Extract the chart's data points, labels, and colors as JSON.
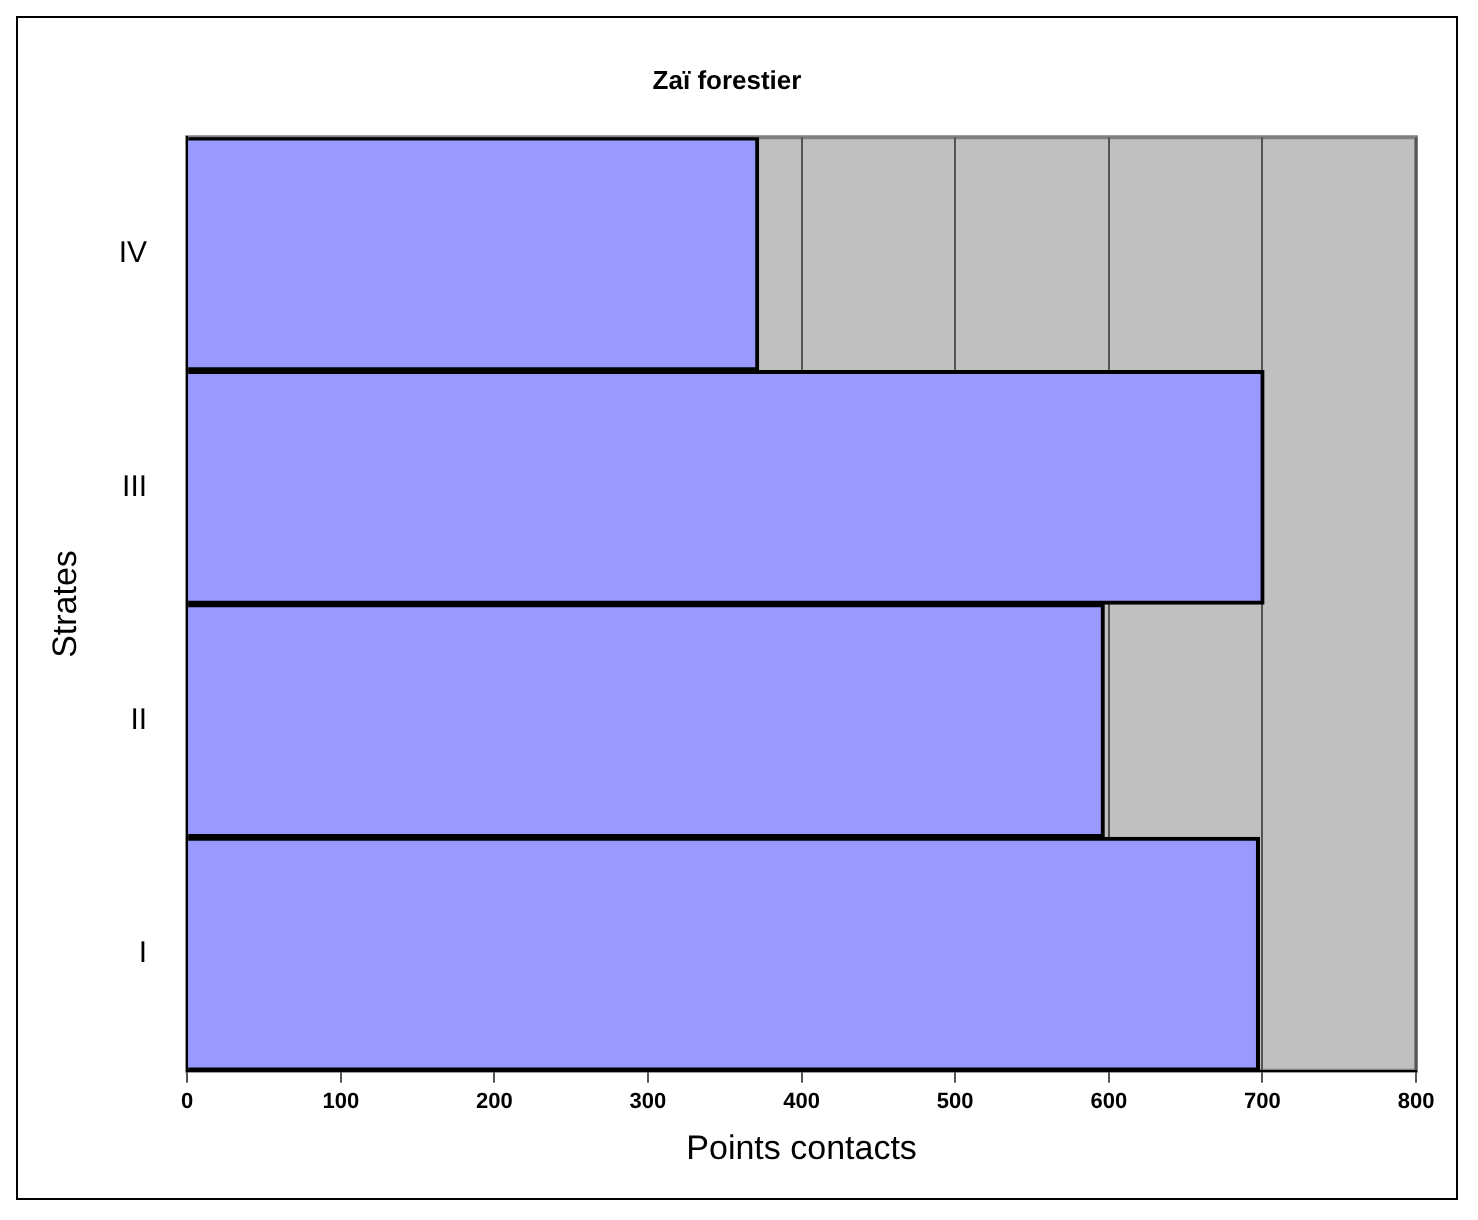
{
  "chart_data": {
    "type": "bar",
    "orientation": "horizontal",
    "title": "Zaï forestier",
    "xlabel": "Points contacts",
    "ylabel": "Strates",
    "categories": [
      "IV",
      "III",
      "II",
      "I"
    ],
    "values": [
      372,
      701,
      597,
      698
    ],
    "color": "#9999ff",
    "xlim": [
      0,
      800
    ],
    "xticks": [
      0,
      100,
      200,
      300,
      400,
      500,
      600,
      700,
      800
    ],
    "grid": "x",
    "legend": false
  }
}
